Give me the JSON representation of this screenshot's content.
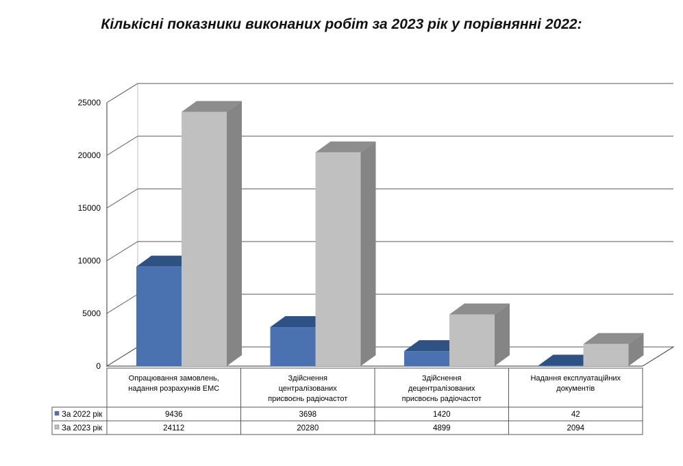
{
  "chart_data": {
    "type": "bar",
    "title": "Кількісні показники виконаних робіт за 2023 рік у порівнянні 2022:",
    "categories": [
      [
        "Опрацювання замовлень,",
        "надання розрахунків ЕМС"
      ],
      [
        "Здійснення",
        "централізованих",
        "присвоєнь радіочастот"
      ],
      [
        "Здійснення",
        "децентралізованих",
        "присвоєнь радіочастот"
      ],
      [
        "Надання експлуатаційних",
        "документів"
      ]
    ],
    "series": [
      {
        "name": "За 2022 рік",
        "values": [
          9436,
          3698,
          1420,
          42
        ],
        "color": "#4a72b0",
        "top_color": "#2d5283",
        "side_color": "#2b4e7e",
        "label_values": [
          "9436",
          "3698",
          "1420",
          "42"
        ]
      },
      {
        "name": "За 2023 рік",
        "values": [
          24112,
          20280,
          4899,
          2094
        ],
        "color": "#c0c0c0",
        "top_color": "#8d8d8d",
        "side_color": "#858585",
        "label_values": [
          "24112",
          "20280",
          "4899",
          "2094"
        ]
      }
    ],
    "y_ticks": [
      "0",
      "5000",
      "10000",
      "15000",
      "20000",
      "25000"
    ],
    "ylim": [
      0,
      25000
    ],
    "grid": true,
    "legend": "data-table",
    "xlabel": "",
    "ylabel": ""
  }
}
